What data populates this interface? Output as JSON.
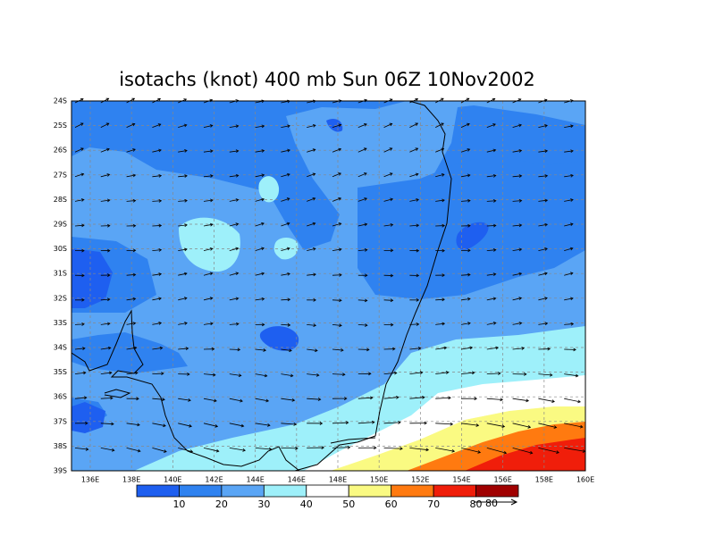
{
  "title": "isotachs (knot) 400 mb Sun 06Z 10Nov2002",
  "lat_labels": [
    "24S",
    "25S",
    "26S",
    "27S",
    "28S",
    "29S",
    "30S",
    "31S",
    "32S",
    "33S",
    "34S",
    "35S",
    "36S",
    "37S",
    "38S",
    "39S"
  ],
  "lon_labels": [
    "136E",
    "138E",
    "140E",
    "142E",
    "144E",
    "146E",
    "148E",
    "150E",
    "152E",
    "154E",
    "156E",
    "158E",
    "160E"
  ],
  "colorbar": {
    "levels": [
      10,
      20,
      30,
      40,
      50,
      60,
      70,
      80
    ],
    "colors": [
      "#1e5ff0",
      "#2f82f0",
      "#5aa5f5",
      "#9ef0fa",
      "#ffffff",
      "#fafa82",
      "#ff7a10",
      "#f01e0a",
      "#a00000"
    ]
  },
  "vector_ref": "80"
}
